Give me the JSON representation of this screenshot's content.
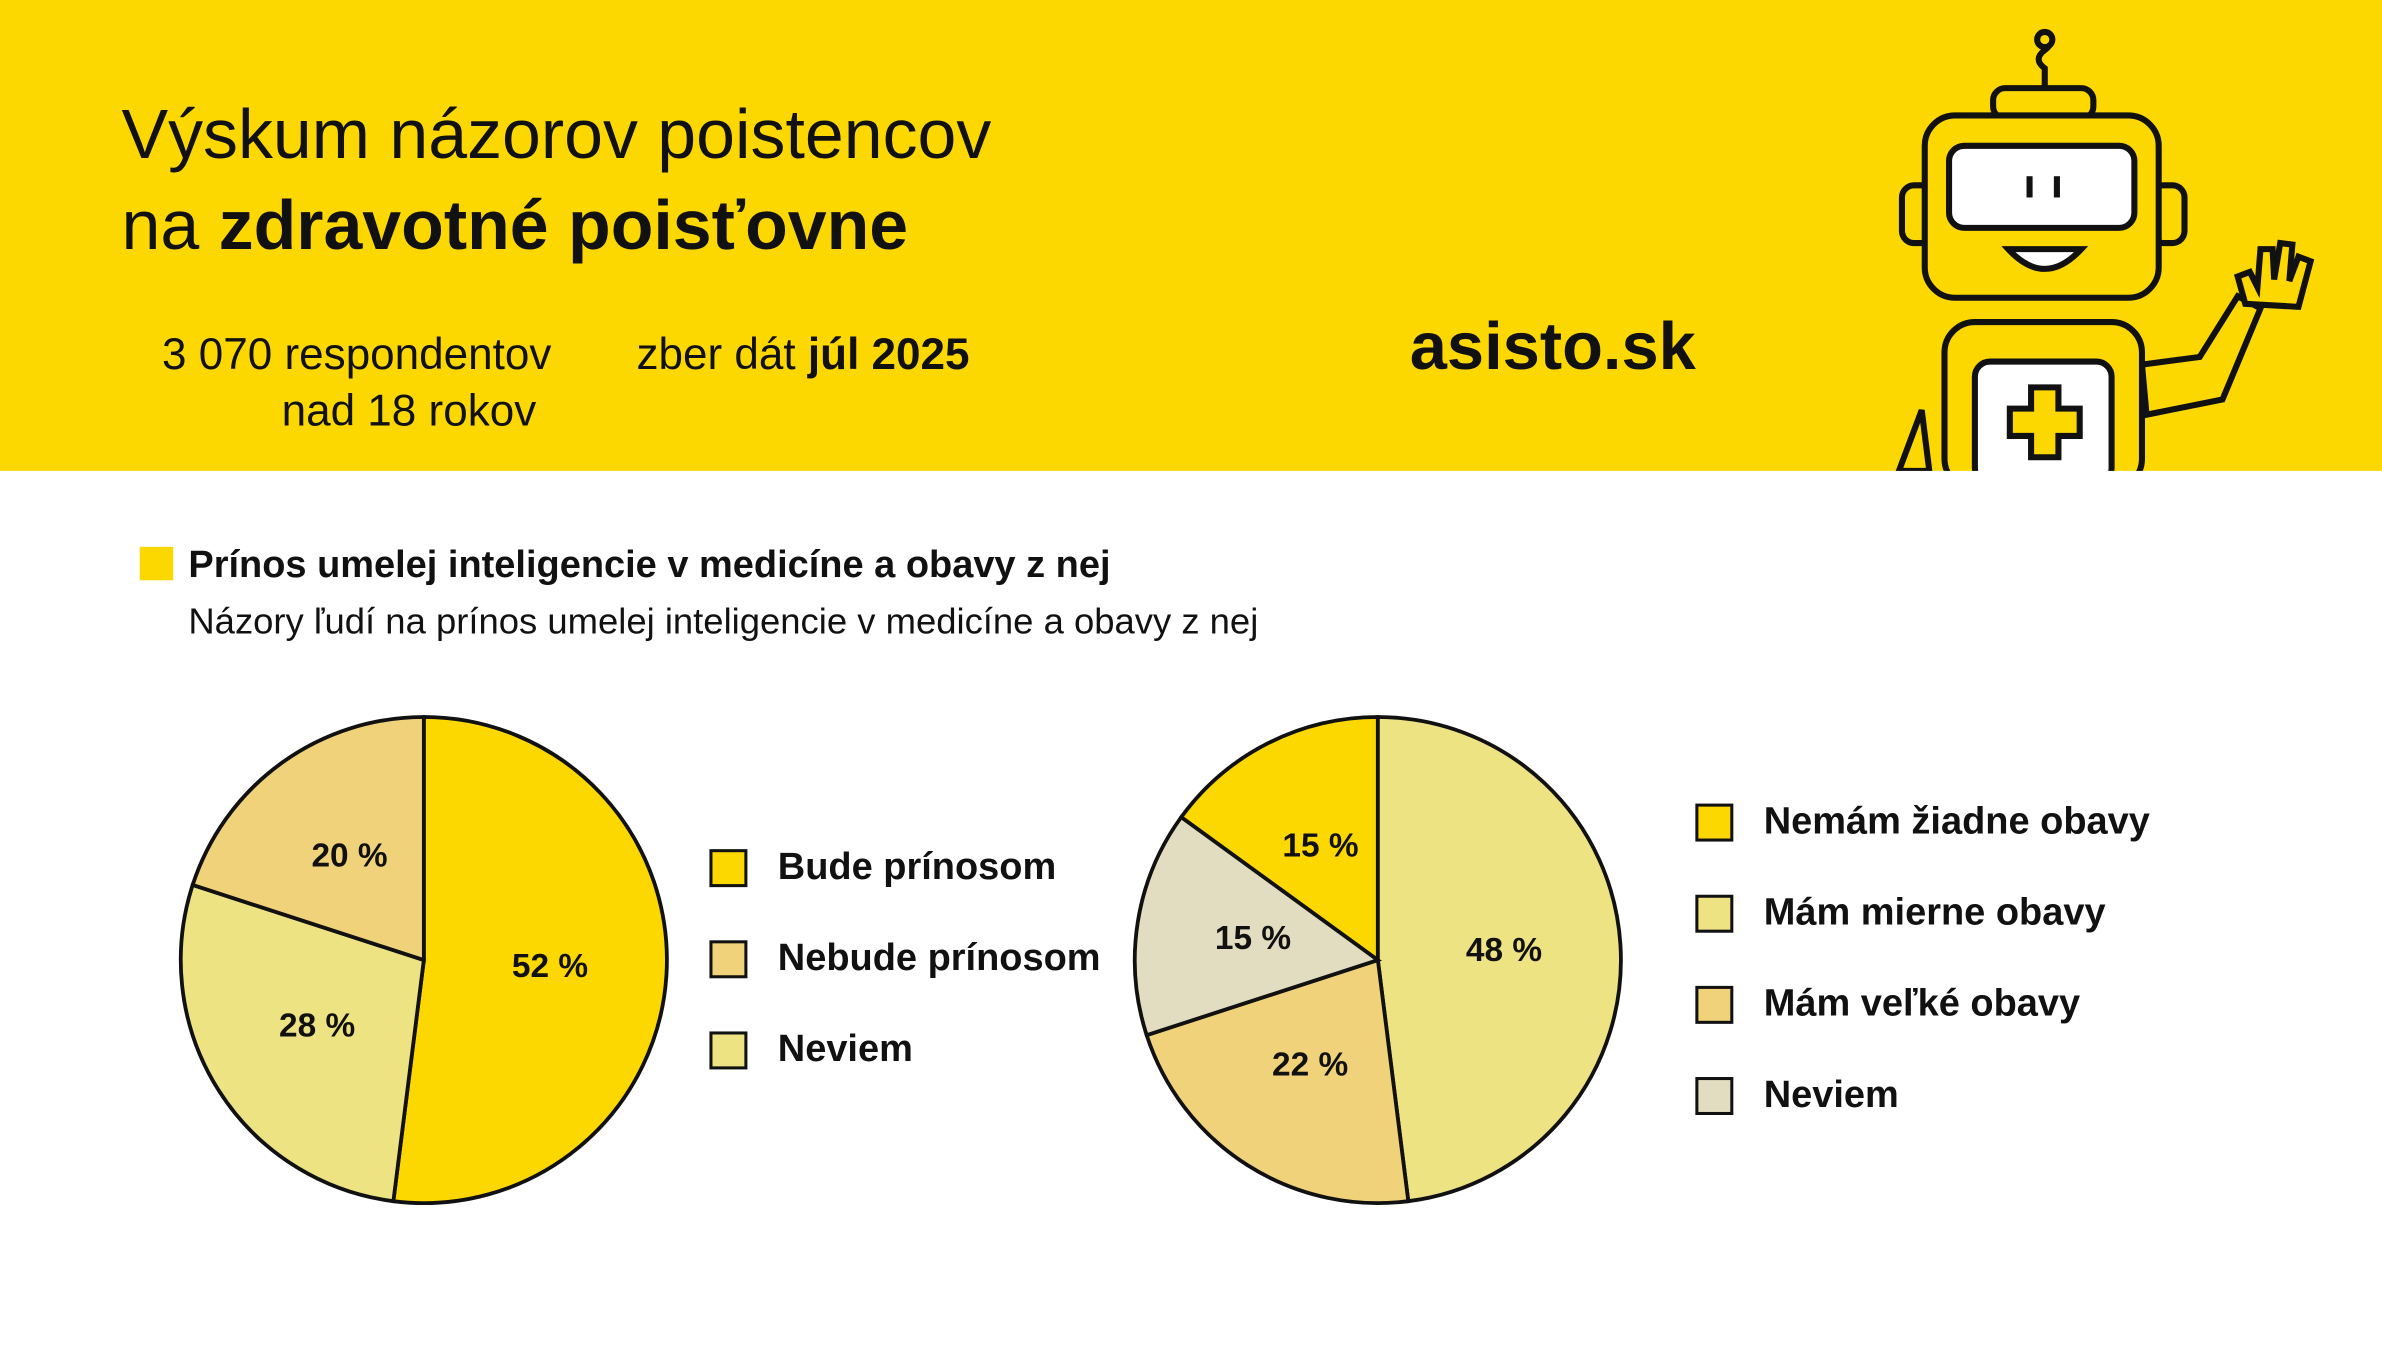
{
  "header": {
    "title_line1": "Výskum názorov poistencov",
    "title_line2_prefix": "na",
    "title_line2_bold": "zdravotné poisťovne",
    "respondents": "3 070 respondentov",
    "age": "nad 18 rokov",
    "collection_prefix": "zber dát",
    "collection_date": "júl 2025",
    "brand": "asisto.sk"
  },
  "section": {
    "title": "Prínos umelej inteligencie v medicíne a obavy z nej",
    "subtitle": "Názory ľudí na prínos umelej inteligencie v medicíne a obavy z nej"
  },
  "chart_data": [
    {
      "type": "pie",
      "categories": [
        "Bude prínosom",
        "Nebude prínosom",
        "Neviem"
      ],
      "values": [
        52,
        20,
        28
      ],
      "value_labels": [
        "52 %",
        "20 %",
        "28 %"
      ],
      "colors": [
        "#fcd800",
        "#f0d27a",
        "#ede383"
      ]
    },
    {
      "type": "pie",
      "categories": [
        "Nemám žiadne obavy",
        "Mám mierne obavy",
        "Mám veľké obavy",
        "Neviem"
      ],
      "values": [
        15,
        48,
        22,
        15
      ],
      "value_labels": [
        "15 %",
        "48 %",
        "22 %",
        "15 %"
      ],
      "colors": [
        "#fcd800",
        "#ede383",
        "#f0d27a",
        "#e2dcc0"
      ]
    }
  ]
}
